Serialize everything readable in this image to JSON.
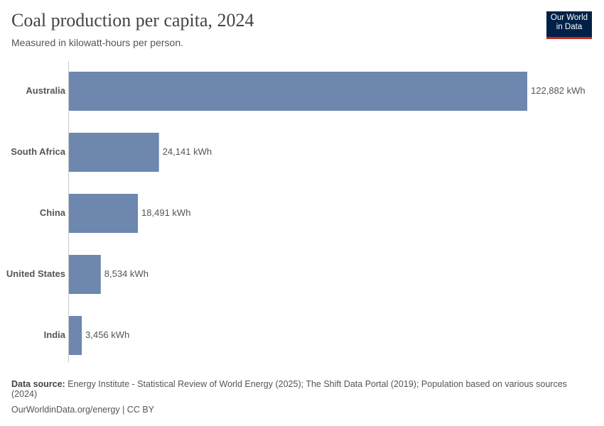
{
  "chart_data": {
    "type": "bar",
    "orientation": "horizontal",
    "title": "Coal production per capita, 2024",
    "subtitle": "Measured in kilowatt-hours per person.",
    "categories": [
      "Australia",
      "South Africa",
      "China",
      "United States",
      "India"
    ],
    "values": [
      122882,
      24141,
      18491,
      8534,
      3456
    ],
    "value_labels": [
      "122,882 kWh",
      "24,141 kWh",
      "18,491 kWh",
      "8,534 kWh",
      "3,456 kWh"
    ],
    "color": "#6d87ae"
  },
  "logo": [
    "Our World",
    "in Data"
  ],
  "footer": {
    "source_label": "Data source:",
    "source": "Energy Institute - Statistical Review of World Energy (2025); The Shift Data Portal (2019); Population based on various sources (2024)",
    "link": "OurWorldinData.org/energy | CC BY"
  }
}
